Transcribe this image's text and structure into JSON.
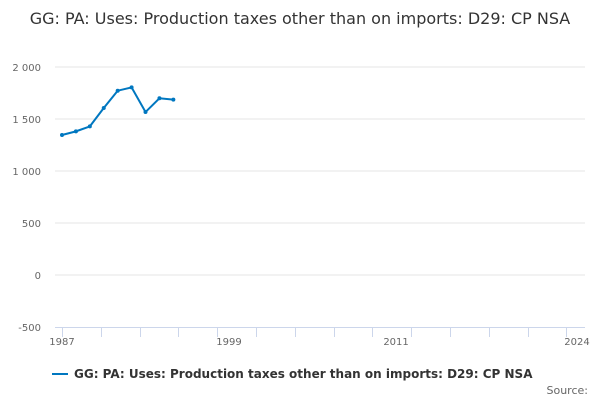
{
  "chart_data": {
    "type": "line",
    "title": "GG: PA: Uses: Production taxes other than on imports: D29: CP NSA",
    "xlabel": "",
    "ylabel": "",
    "x": [
      1987,
      1988,
      1989,
      1990,
      1991,
      1992,
      1993,
      1994,
      1995
    ],
    "series": [
      {
        "name": "GG: PA: Uses: Production taxes other than on imports: D29: CP NSA",
        "values": [
          1346,
          1381,
          1429,
          1606,
          1772,
          1804,
          1567,
          1699,
          1686
        ],
        "color": "#0077c0"
      }
    ],
    "xlim": [
      1987,
      2024
    ],
    "ylim": [
      -500,
      2000
    ],
    "x_ticks": [
      "1987",
      "1999",
      "2011",
      "2024"
    ],
    "y_ticks": [
      "2 000",
      "1 500",
      "1 000",
      "500",
      "0",
      "-500"
    ],
    "y_tick_values": [
      2000,
      1500,
      1000,
      500,
      0,
      -500
    ],
    "grid": true,
    "legend": "bottom"
  },
  "source_label": "Source:"
}
